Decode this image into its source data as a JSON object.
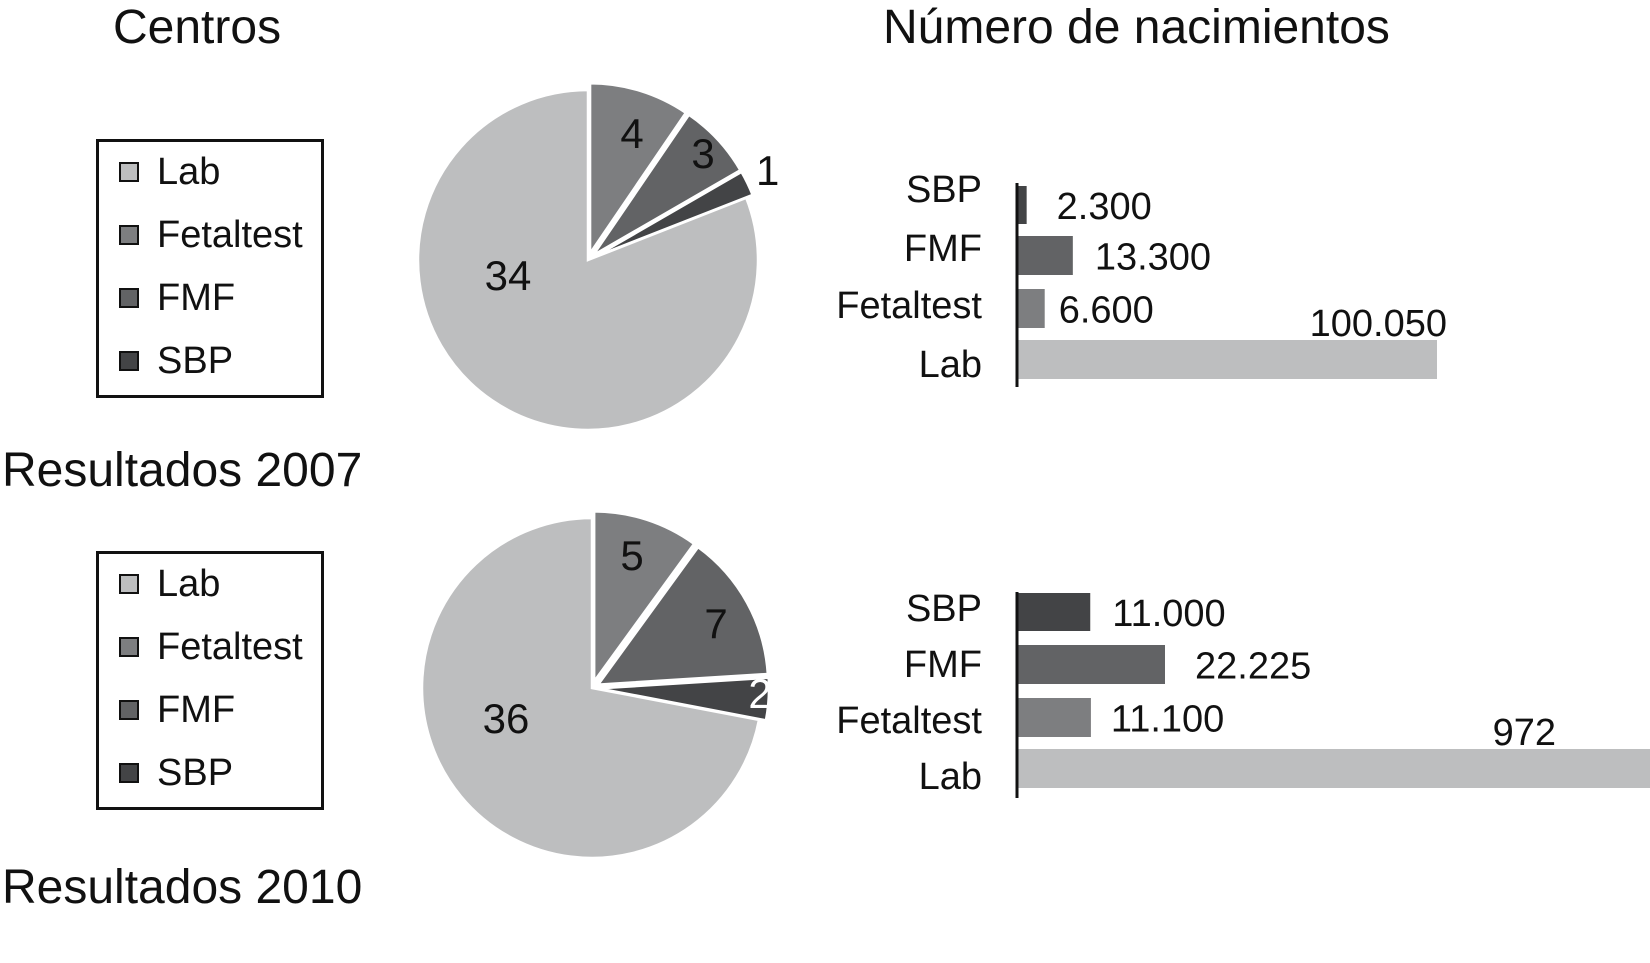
{
  "headers": {
    "left": "Centros",
    "right": "Número de nacimientos"
  },
  "colors": {
    "Lab": "#bdbebf",
    "Fetaltest": "#7d7e80",
    "FMF": "#626365",
    "SBP": "#434446",
    "axis": "#111111",
    "separator": "#ffffff"
  },
  "panels": [
    {
      "title": "Resultados 2007",
      "legend": [
        "Lab",
        "Fetaltest",
        "FMF",
        "SBP"
      ]
    },
    {
      "title": "Resultados 2010",
      "legend": [
        "Lab",
        "Fetaltest",
        "FMF",
        "SBP"
      ]
    }
  ],
  "chart_data": [
    {
      "type": "pie",
      "title": "Resultados 2007",
      "slices": [
        {
          "label": "Fetaltest",
          "value": 4,
          "display": "4"
        },
        {
          "label": "FMF",
          "value": 3,
          "display": "3"
        },
        {
          "label": "SBP",
          "value": 1,
          "display": "1"
        },
        {
          "label": "Lab",
          "value": 34,
          "display": "34"
        }
      ],
      "start": "12 o'clock, clockwise"
    },
    {
      "type": "bar",
      "orientation": "horizontal",
      "title": "",
      "categories": [
        "SBP",
        "FMF",
        "Fetaltest",
        "Lab"
      ],
      "values": [
        2300,
        13300,
        6600,
        100050
      ],
      "value_labels": [
        "2.300",
        "13.300",
        "6.600",
        "100.050"
      ]
    },
    {
      "type": "pie",
      "title": "Resultados 2010",
      "slices": [
        {
          "label": "Fetaltest",
          "value": 5,
          "display": "5"
        },
        {
          "label": "FMF",
          "value": 7,
          "display": "7"
        },
        {
          "label": "SBP",
          "value": 2,
          "display": "2"
        },
        {
          "label": "Lab",
          "value": 36,
          "display": "36"
        }
      ],
      "start": "12 o'clock, clockwise"
    },
    {
      "type": "bar",
      "orientation": "horizontal",
      "title": "",
      "categories": [
        "SBP",
        "FMF",
        "Fetaltest",
        "Lab"
      ],
      "values": [
        11000,
        22225,
        11100,
        972
      ],
      "value_labels": [
        "11.000",
        "22.225",
        "11.100",
        "972"
      ],
      "note": "Lab bar extends to the right edge of the image"
    }
  ]
}
